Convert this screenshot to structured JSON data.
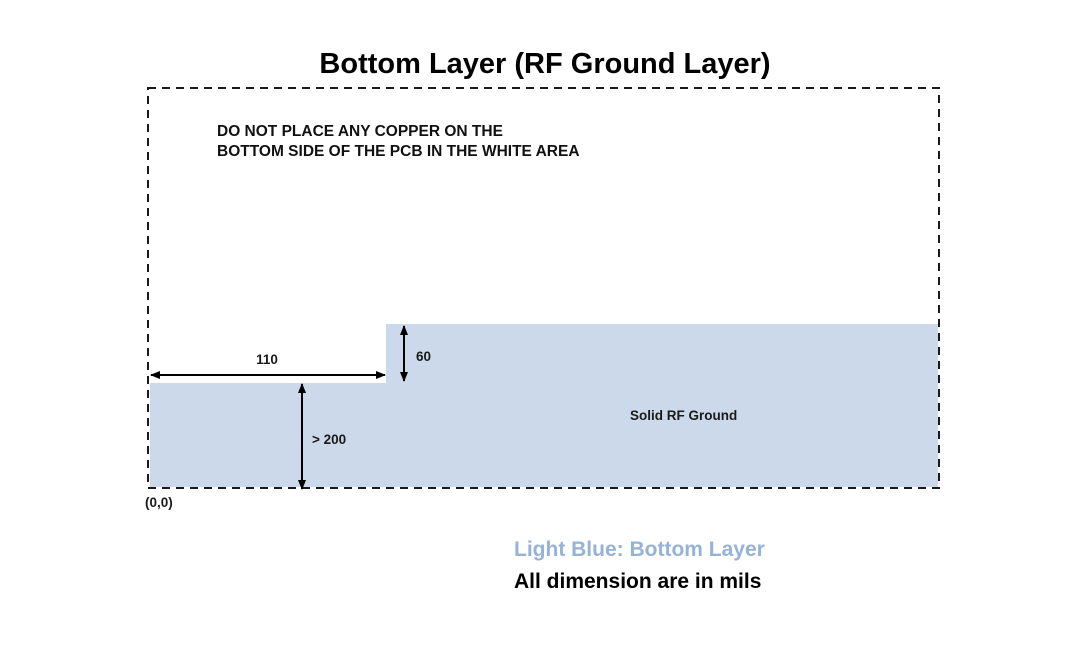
{
  "title": "Bottom Layer (RF Ground Layer)",
  "warning": {
    "line1": "DO NOT PLACE ANY COPPER ON THE",
    "line2": "BOTTOM SIDE OF THE PCB IN THE WHITE AREA"
  },
  "ground_label": "Solid RF Ground",
  "dimensions": {
    "width": "110",
    "step_height": "60",
    "ground_height": "> 200"
  },
  "origin_label": "(0,0)",
  "legend": {
    "color_key": "Light Blue: Bottom Layer",
    "units_note": "All dimension are in mils"
  },
  "colors": {
    "ground_fill": "#ccd9ea",
    "legend_blue": "#95b3d7",
    "outline": "#1a1a1a"
  }
}
